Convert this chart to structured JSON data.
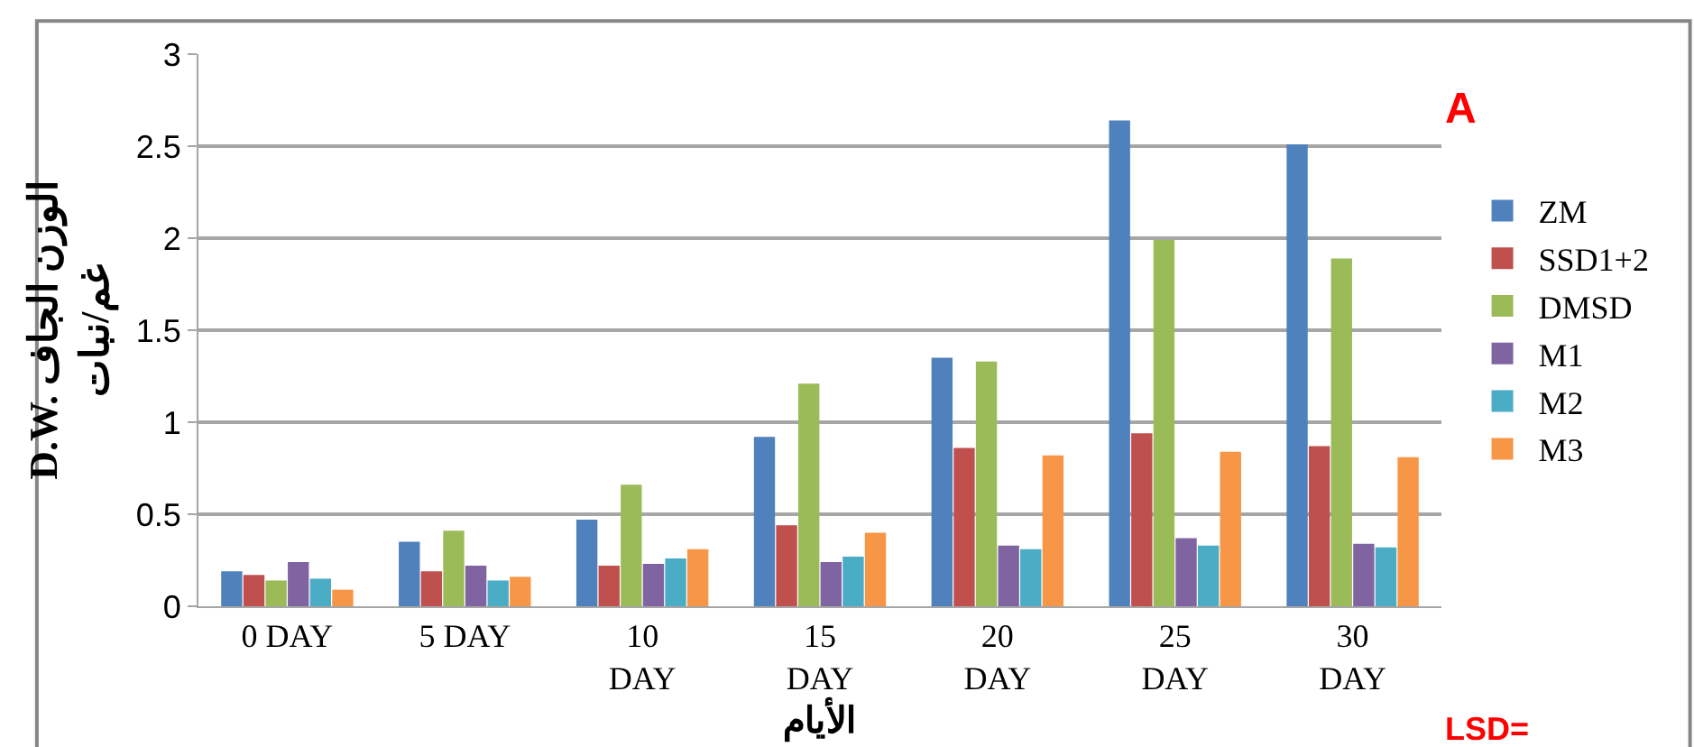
{
  "chart_data": {
    "type": "bar",
    "ylabel": "D.W. الوزن الجاف\nغم/نبات",
    "xlabel": "الأيام",
    "categories": [
      "0 DAY",
      "5 DAY",
      "10\nDAY",
      "15\nDAY",
      "20\nDAY",
      "25\nDAY",
      "30\nDAY"
    ],
    "series": [
      {
        "name": "ZM",
        "color": "#4f81bd",
        "values": [
          0.19,
          0.35,
          0.47,
          0.92,
          1.35,
          2.64,
          2.51
        ]
      },
      {
        "name": "SSD1+2",
        "color": "#c0504d",
        "values": [
          0.17,
          0.19,
          0.22,
          0.44,
          0.86,
          0.94,
          0.87
        ]
      },
      {
        "name": "DMSD",
        "color": "#9bbb59",
        "values": [
          0.14,
          0.41,
          0.66,
          1.21,
          1.33,
          1.99,
          1.89
        ]
      },
      {
        "name": "M1",
        "color": "#8064a2",
        "values": [
          0.24,
          0.22,
          0.23,
          0.24,
          0.33,
          0.37,
          0.34
        ]
      },
      {
        "name": "M2",
        "color": "#4bacc6",
        "values": [
          0.15,
          0.14,
          0.26,
          0.27,
          0.31,
          0.33,
          0.32
        ]
      },
      {
        "name": "M3",
        "color": "#f79646",
        "values": [
          0.09,
          0.16,
          0.31,
          0.4,
          0.82,
          0.84,
          0.81
        ]
      }
    ],
    "ylim": [
      0,
      3
    ],
    "yticks": [
      0,
      0.5,
      1,
      1.5,
      2,
      2.5,
      3
    ],
    "grid": "y",
    "legend": "right",
    "annotations": [
      "A",
      "LSD="
    ]
  }
}
